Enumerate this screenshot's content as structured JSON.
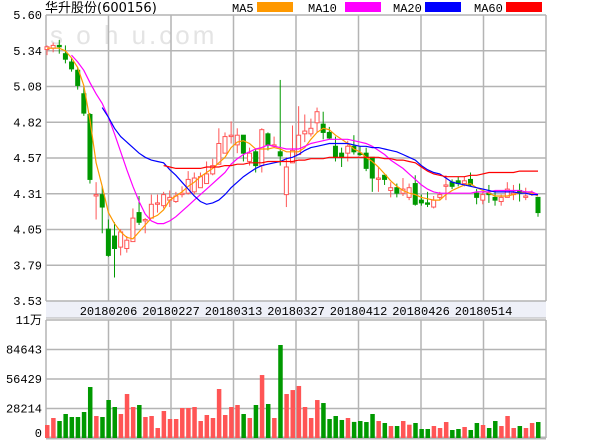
{
  "header": {
    "title": "华升股份(600156)",
    "watermark": "SOHU.com"
  },
  "legend": [
    {
      "label": "MA5",
      "color": "#ff9900"
    },
    {
      "label": "MA10",
      "color": "#ff00ff"
    },
    {
      "label": "MA20",
      "color": "#0000ff"
    },
    {
      "label": "MA60",
      "color": "#ff0000"
    }
  ],
  "colors": {
    "up": "#ff5555",
    "down": "#009900",
    "grid": "#b4b4b4",
    "date_band": "#eef0f8"
  },
  "chart_data": [
    {
      "type": "candlestick",
      "title": "",
      "ylim": [
        3.53,
        5.6
      ],
      "yticks": [
        "5.60",
        "5.34",
        "5.08",
        "4.82",
        "4.57",
        "4.31",
        "4.05",
        "3.79",
        "3.53"
      ],
      "xticks": [
        "20180206",
        "20180227",
        "20180313",
        "20180327",
        "20180412",
        "20180426",
        "20180514"
      ],
      "grid": true,
      "ohlc": [
        [
          5.35,
          5.38,
          5.31,
          5.37
        ],
        [
          5.36,
          5.4,
          5.33,
          5.38
        ],
        [
          5.38,
          5.42,
          5.32,
          5.37
        ],
        [
          5.32,
          5.38,
          5.25,
          5.28
        ],
        [
          5.26,
          5.29,
          5.19,
          5.21
        ],
        [
          5.2,
          5.22,
          5.06,
          5.09
        ],
        [
          5.03,
          5.08,
          4.87,
          4.89
        ],
        [
          4.88,
          4.89,
          4.38,
          4.41
        ],
        [
          4.29,
          4.39,
          4.12,
          4.3
        ],
        [
          4.3,
          4.36,
          4.02,
          4.21
        ],
        [
          4.05,
          4.12,
          3.85,
          3.86
        ],
        [
          4.0,
          4.1,
          3.7,
          3.91
        ],
        [
          3.92,
          4.05,
          3.86,
          4.03
        ],
        [
          3.91,
          4.0,
          3.88,
          3.97
        ],
        [
          3.96,
          4.2,
          3.96,
          4.13
        ],
        [
          4.17,
          4.29,
          4.08,
          4.1
        ],
        [
          4.11,
          4.13,
          4.02,
          4.12
        ],
        [
          4.13,
          4.3,
          4.13,
          4.23
        ],
        [
          4.23,
          4.3,
          4.17,
          4.24
        ],
        [
          4.22,
          4.32,
          4.2,
          4.3
        ],
        [
          4.26,
          4.33,
          4.21,
          4.28
        ],
        [
          4.25,
          4.32,
          4.24,
          4.29
        ],
        [
          4.3,
          4.36,
          4.28,
          4.31
        ],
        [
          4.31,
          4.47,
          4.3,
          4.41
        ],
        [
          4.32,
          4.46,
          4.3,
          4.42
        ],
        [
          4.35,
          4.46,
          4.35,
          4.43
        ],
        [
          4.38,
          4.54,
          4.38,
          4.45
        ],
        [
          4.45,
          4.56,
          4.44,
          4.51
        ],
        [
          4.52,
          4.78,
          4.52,
          4.67
        ],
        [
          4.6,
          4.75,
          4.6,
          4.72
        ],
        [
          4.72,
          4.83,
          4.67,
          4.73
        ],
        [
          4.66,
          4.78,
          4.6,
          4.73
        ],
        [
          4.73,
          4.73,
          4.54,
          4.6
        ],
        [
          4.54,
          4.64,
          4.51,
          4.6
        ],
        [
          4.61,
          4.63,
          4.46,
          4.51
        ],
        [
          4.51,
          4.78,
          4.46,
          4.77
        ],
        [
          4.74,
          4.75,
          4.62,
          4.66
        ],
        [
          4.65,
          4.72,
          4.64,
          4.66
        ],
        [
          4.61,
          5.13,
          4.51,
          4.58
        ],
        [
          4.3,
          4.57,
          4.21,
          4.5
        ],
        [
          4.53,
          4.8,
          4.53,
          4.62
        ],
        [
          4.59,
          4.94,
          4.59,
          4.73
        ],
        [
          4.74,
          4.88,
          4.68,
          4.76
        ],
        [
          4.74,
          4.85,
          4.72,
          4.78
        ],
        [
          4.82,
          4.93,
          4.75,
          4.9
        ],
        [
          4.81,
          4.9,
          4.7,
          4.75
        ],
        [
          4.75,
          4.79,
          4.7,
          4.71
        ],
        [
          4.65,
          4.72,
          4.54,
          4.57
        ],
        [
          4.6,
          4.64,
          4.5,
          4.57
        ],
        [
          4.6,
          4.69,
          4.54,
          4.65
        ],
        [
          4.65,
          4.73,
          4.59,
          4.61
        ],
        [
          4.6,
          4.65,
          4.58,
          4.59
        ],
        [
          4.6,
          4.64,
          4.47,
          4.49
        ],
        [
          4.57,
          4.57,
          4.32,
          4.42
        ],
        [
          4.41,
          4.5,
          4.32,
          4.42
        ],
        [
          4.44,
          4.44,
          4.37,
          4.41
        ],
        [
          4.33,
          4.39,
          4.28,
          4.35
        ],
        [
          4.35,
          4.38,
          4.28,
          4.31
        ],
        [
          4.31,
          4.42,
          4.29,
          4.34
        ],
        [
          4.28,
          4.38,
          4.26,
          4.35
        ],
        [
          4.38,
          4.44,
          4.22,
          4.23
        ],
        [
          4.26,
          4.3,
          4.22,
          4.24
        ],
        [
          4.24,
          4.32,
          4.21,
          4.23
        ],
        [
          4.21,
          4.29,
          4.2,
          4.26
        ],
        [
          4.28,
          4.32,
          4.26,
          4.3
        ],
        [
          4.36,
          4.44,
          4.26,
          4.37
        ],
        [
          4.39,
          4.41,
          4.34,
          4.36
        ],
        [
          4.4,
          4.43,
          4.36,
          4.38
        ],
        [
          4.38,
          4.43,
          4.36,
          4.4
        ],
        [
          4.41,
          4.46,
          4.36,
          4.37
        ],
        [
          4.31,
          4.34,
          4.23,
          4.28
        ],
        [
          4.26,
          4.32,
          4.23,
          4.3
        ],
        [
          4.31,
          4.37,
          4.24,
          4.3
        ],
        [
          4.28,
          4.33,
          4.22,
          4.26
        ],
        [
          4.25,
          4.3,
          4.22,
          4.28
        ],
        [
          4.28,
          4.39,
          4.28,
          4.34
        ],
        [
          4.3,
          4.37,
          4.26,
          4.31
        ],
        [
          4.33,
          4.38,
          4.25,
          4.31
        ],
        [
          4.28,
          4.35,
          4.26,
          4.29
        ],
        [
          4.3,
          4.33,
          4.29,
          4.31
        ],
        [
          4.28,
          4.28,
          4.14,
          4.17
        ]
      ],
      "ma": {
        "MA5": [
          5.36,
          5.36,
          5.36,
          5.34,
          5.29,
          5.22,
          5.09,
          4.84,
          4.53,
          4.36,
          4.17,
          4.09,
          4.03,
          3.99,
          3.98,
          4.03,
          4.08,
          4.13,
          4.15,
          4.19,
          4.26,
          4.29,
          4.32,
          4.36,
          4.39,
          4.43,
          4.46,
          4.49,
          4.53,
          4.57,
          4.64,
          4.68,
          4.69,
          4.67,
          4.63,
          4.63,
          4.63,
          4.64,
          4.63,
          4.61,
          4.61,
          4.61,
          4.64,
          4.7,
          4.75,
          4.78,
          4.77,
          4.73,
          4.7,
          4.67,
          4.63,
          4.61,
          4.57,
          4.54,
          4.5,
          4.45,
          4.4,
          4.36,
          4.33,
          4.31,
          4.3,
          4.28,
          4.27,
          4.26,
          4.26,
          4.3,
          4.33,
          4.35,
          4.37,
          4.38,
          4.35,
          4.33,
          4.31,
          4.29,
          4.29,
          4.29,
          4.3,
          4.31,
          4.32,
          4.31,
          4.29
        ],
        "MA10": [
          null,
          null,
          null,
          null,
          5.31,
          5.26,
          5.2,
          5.11,
          5.03,
          4.96,
          4.86,
          4.74,
          4.61,
          4.48,
          4.36,
          4.25,
          4.16,
          4.11,
          4.09,
          4.09,
          4.11,
          4.14,
          4.18,
          4.22,
          4.26,
          4.3,
          4.34,
          4.38,
          4.42,
          4.46,
          4.52,
          4.56,
          4.59,
          4.61,
          4.63,
          4.64,
          4.66,
          4.65,
          4.64,
          4.63,
          4.63,
          4.63,
          4.65,
          4.67,
          4.68,
          4.69,
          4.7,
          4.7,
          4.7,
          4.7,
          4.69,
          4.68,
          4.67,
          4.65,
          4.62,
          4.59,
          4.55,
          4.52,
          4.49,
          4.45,
          4.41,
          4.37,
          4.34,
          4.32,
          4.31,
          4.31,
          4.31,
          4.31,
          4.31,
          4.31,
          4.32,
          4.32,
          4.32,
          4.33,
          4.33,
          4.33,
          4.33,
          4.33,
          4.32,
          4.32,
          4.3
        ],
        "MA20": [
          null,
          null,
          null,
          null,
          null,
          null,
          null,
          null,
          null,
          4.93,
          4.86,
          4.78,
          4.72,
          4.68,
          4.64,
          4.6,
          4.57,
          4.55,
          4.54,
          4.53,
          4.48,
          4.44,
          4.39,
          4.34,
          4.29,
          4.25,
          4.23,
          4.24,
          4.26,
          4.3,
          4.35,
          4.39,
          4.43,
          4.46,
          4.49,
          4.51,
          4.52,
          4.53,
          4.54,
          4.56,
          4.57,
          4.59,
          4.62,
          4.64,
          4.65,
          4.66,
          4.67,
          4.67,
          4.67,
          4.67,
          4.66,
          4.65,
          4.65,
          4.64,
          4.64,
          4.63,
          4.62,
          4.61,
          4.59,
          4.57,
          4.55,
          4.51,
          4.48,
          4.46,
          4.45,
          4.42,
          4.39,
          4.38,
          4.37,
          4.36,
          4.35,
          4.34,
          4.33,
          4.32,
          4.32,
          4.32,
          4.32,
          4.31,
          4.31,
          4.3,
          4.3
        ],
        "MA60": [
          null,
          null,
          null,
          null,
          null,
          null,
          null,
          null,
          null,
          null,
          null,
          null,
          null,
          null,
          null,
          null,
          null,
          null,
          null,
          4.51,
          4.5,
          4.49,
          4.49,
          4.49,
          4.49,
          4.49,
          4.5,
          4.5,
          4.5,
          4.51,
          4.51,
          4.52,
          4.52,
          4.53,
          4.53,
          4.53,
          4.54,
          4.54,
          4.54,
          4.54,
          4.54,
          4.55,
          4.55,
          4.56,
          4.56,
          4.56,
          4.57,
          4.57,
          4.57,
          4.57,
          4.57,
          4.57,
          4.57,
          4.57,
          4.57,
          4.56,
          4.56,
          4.55,
          4.55,
          4.54,
          4.53,
          4.5,
          4.47,
          4.45,
          4.44,
          4.43,
          4.43,
          4.43,
          4.43,
          4.44,
          4.44,
          4.45,
          4.46,
          4.46,
          4.46,
          4.46,
          4.46,
          4.47,
          4.47,
          4.47,
          4.47
        ]
      }
    },
    {
      "type": "bar",
      "title": "",
      "ylim": [
        0,
        110000
      ],
      "yticks": [
        "11万",
        "84643",
        "56429",
        "28214",
        "0"
      ],
      "grid": true,
      "values": [
        12100,
        18640,
        15840,
        22370,
        19570,
        19570,
        24230,
        47530,
        20500,
        19570,
        35420,
        28890,
        22370,
        41010,
        28890,
        30760,
        19570,
        20500,
        9320,
        25160,
        17710,
        17710,
        27960,
        27960,
        28890,
        15840,
        21440,
        18640,
        45670,
        21440,
        28890,
        30760,
        22370,
        18640,
        30760,
        58700,
        31700,
        18640,
        86700,
        41000,
        44700,
        48500,
        28900,
        18640,
        35400,
        32600,
        17700,
        20500,
        16800,
        18640,
        15000,
        15840,
        14900,
        22370,
        15840,
        13980,
        11180,
        11180,
        15840,
        12400,
        13980,
        8390,
        8390,
        11180,
        9320,
        14900,
        7460,
        8390,
        10250,
        7460,
        13980,
        12120,
        9320,
        15840,
        11180,
        20500,
        9320,
        11180,
        9320,
        13980,
        14900
      ]
    }
  ]
}
